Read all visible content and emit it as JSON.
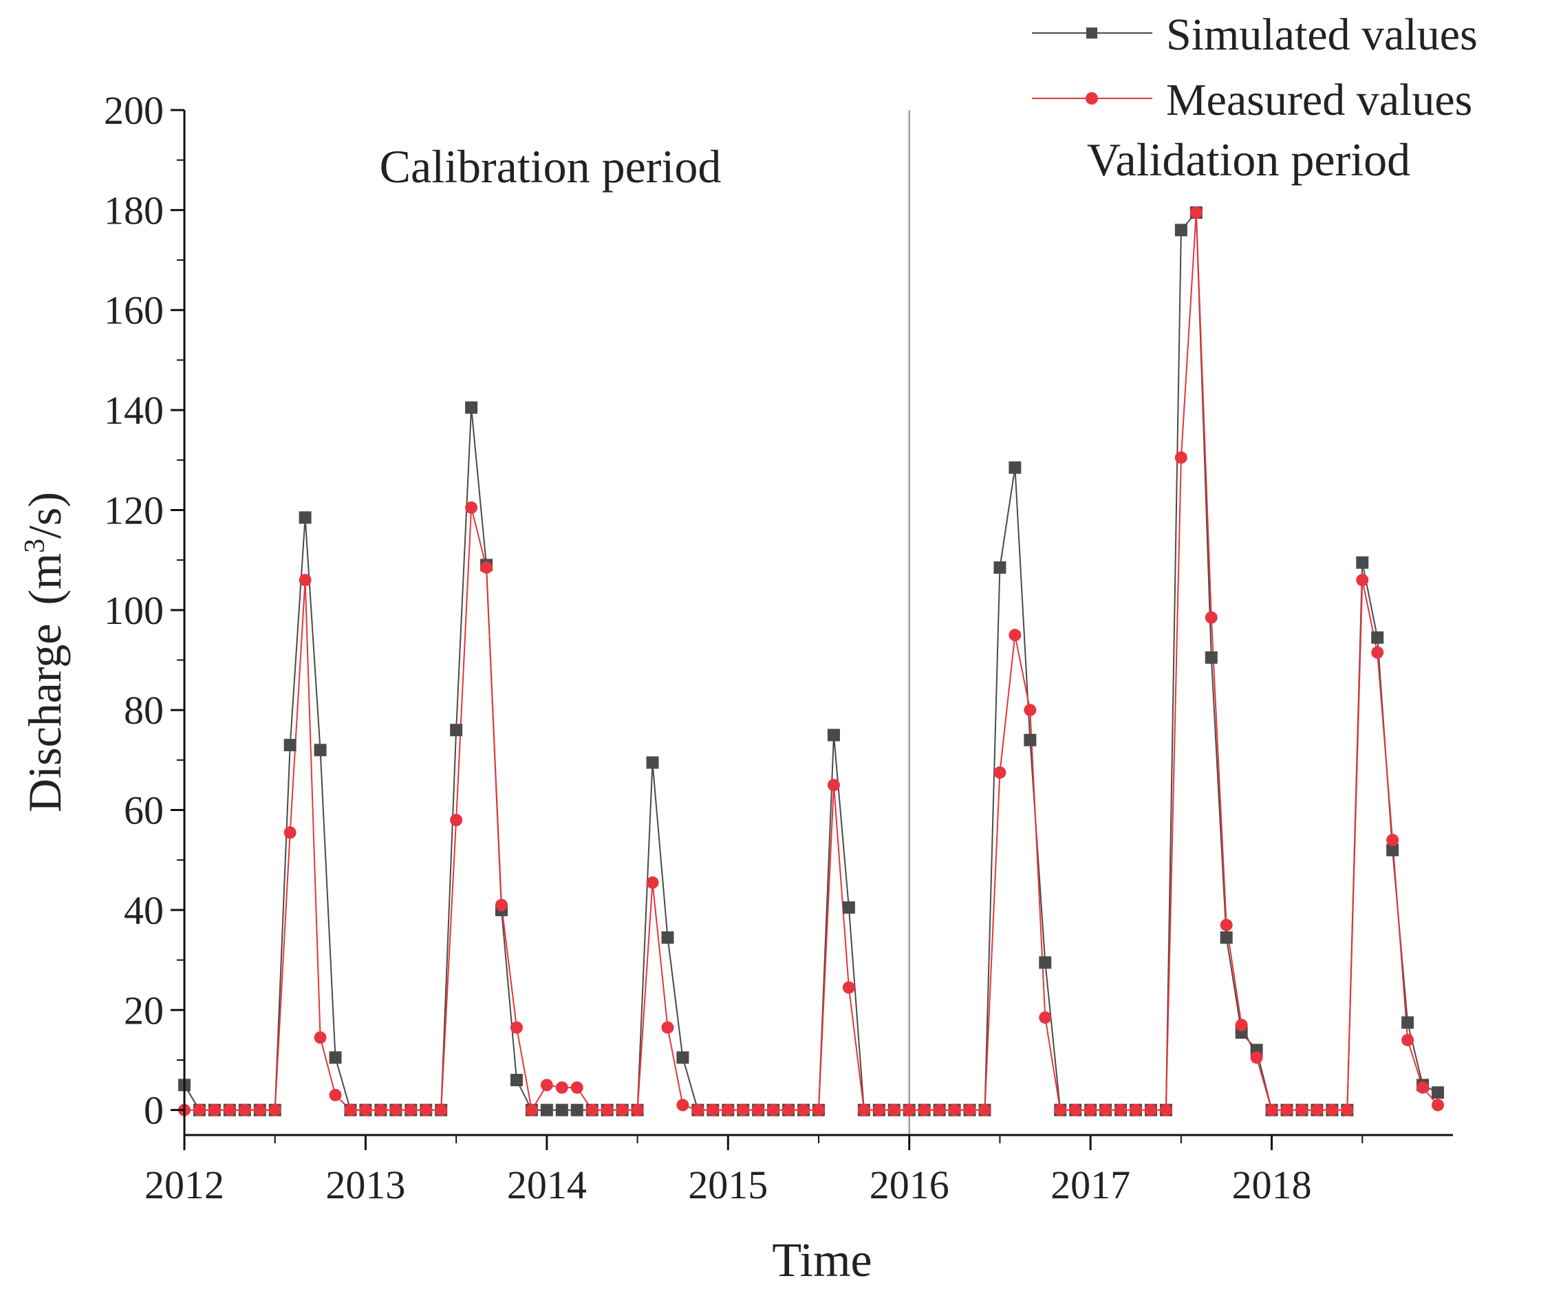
{
  "chart_data": {
    "type": "line",
    "title": "",
    "xlabel": "Time",
    "ylabel_main": "Discharge",
    "ylabel_units": "(m³/s)",
    "ylabel_sup": "3",
    "x_start": 2012,
    "xlim": [
      2012,
      2019
    ],
    "ylim": [
      -5,
      200
    ],
    "x_ticks": [
      "2012",
      "2013",
      "2014",
      "2015",
      "2016",
      "2017",
      "2018"
    ],
    "y_ticks": [
      "0",
      "20",
      "40",
      "60",
      "80",
      "100",
      "120",
      "140",
      "160",
      "180",
      "200"
    ],
    "divider_x": 2016,
    "annotations": [
      "Calibration period",
      "Validation period"
    ],
    "legend_position": "top-right",
    "grid": false,
    "series": [
      {
        "name": "Simulated values",
        "color": "#4a4a4a",
        "marker": "square",
        "values": [
          5,
          0,
          0,
          0,
          0,
          0,
          0,
          73,
          118.5,
          72,
          10.5,
          0,
          0,
          0,
          0,
          0,
          0,
          0,
          76,
          140.5,
          109,
          40,
          6,
          0,
          0,
          0,
          0,
          0,
          0,
          0,
          0,
          69.5,
          34.5,
          10.5,
          0,
          0,
          0,
          0,
          0,
          0,
          0,
          0,
          0,
          75,
          40.5,
          0,
          0,
          0,
          0,
          0,
          0,
          0,
          0,
          0,
          108.5,
          128.5,
          74,
          29.5,
          0,
          0,
          0,
          0,
          0,
          0,
          0,
          0,
          176,
          179.5,
          90.5,
          34.5,
          15.5,
          12,
          0,
          0,
          0,
          0,
          0,
          0,
          109.5,
          94.5,
          52,
          17.5,
          5,
          3.5
        ]
      },
      {
        "name": "Measured values",
        "color": "#e8343e",
        "marker": "circle",
        "values": [
          0,
          0,
          0,
          0,
          0,
          0,
          0,
          55.5,
          106,
          14.5,
          3,
          0,
          0,
          0,
          0,
          0,
          0,
          0,
          58,
          120.5,
          108.5,
          41,
          16.5,
          0,
          5,
          4.5,
          4.5,
          0,
          0,
          0,
          0,
          45.5,
          16.5,
          1,
          0,
          0,
          0,
          0,
          0,
          0,
          0,
          0,
          0,
          65,
          24.5,
          0,
          0,
          0,
          0,
          0,
          0,
          0,
          0,
          0,
          67.5,
          95,
          80,
          18.5,
          0,
          0,
          0,
          0,
          0,
          0,
          0,
          0,
          130.5,
          179.5,
          98.5,
          37,
          17,
          10.5,
          0,
          0,
          0,
          0,
          0,
          0,
          106,
          91.5,
          54,
          14,
          4.5,
          1
        ]
      }
    ]
  }
}
